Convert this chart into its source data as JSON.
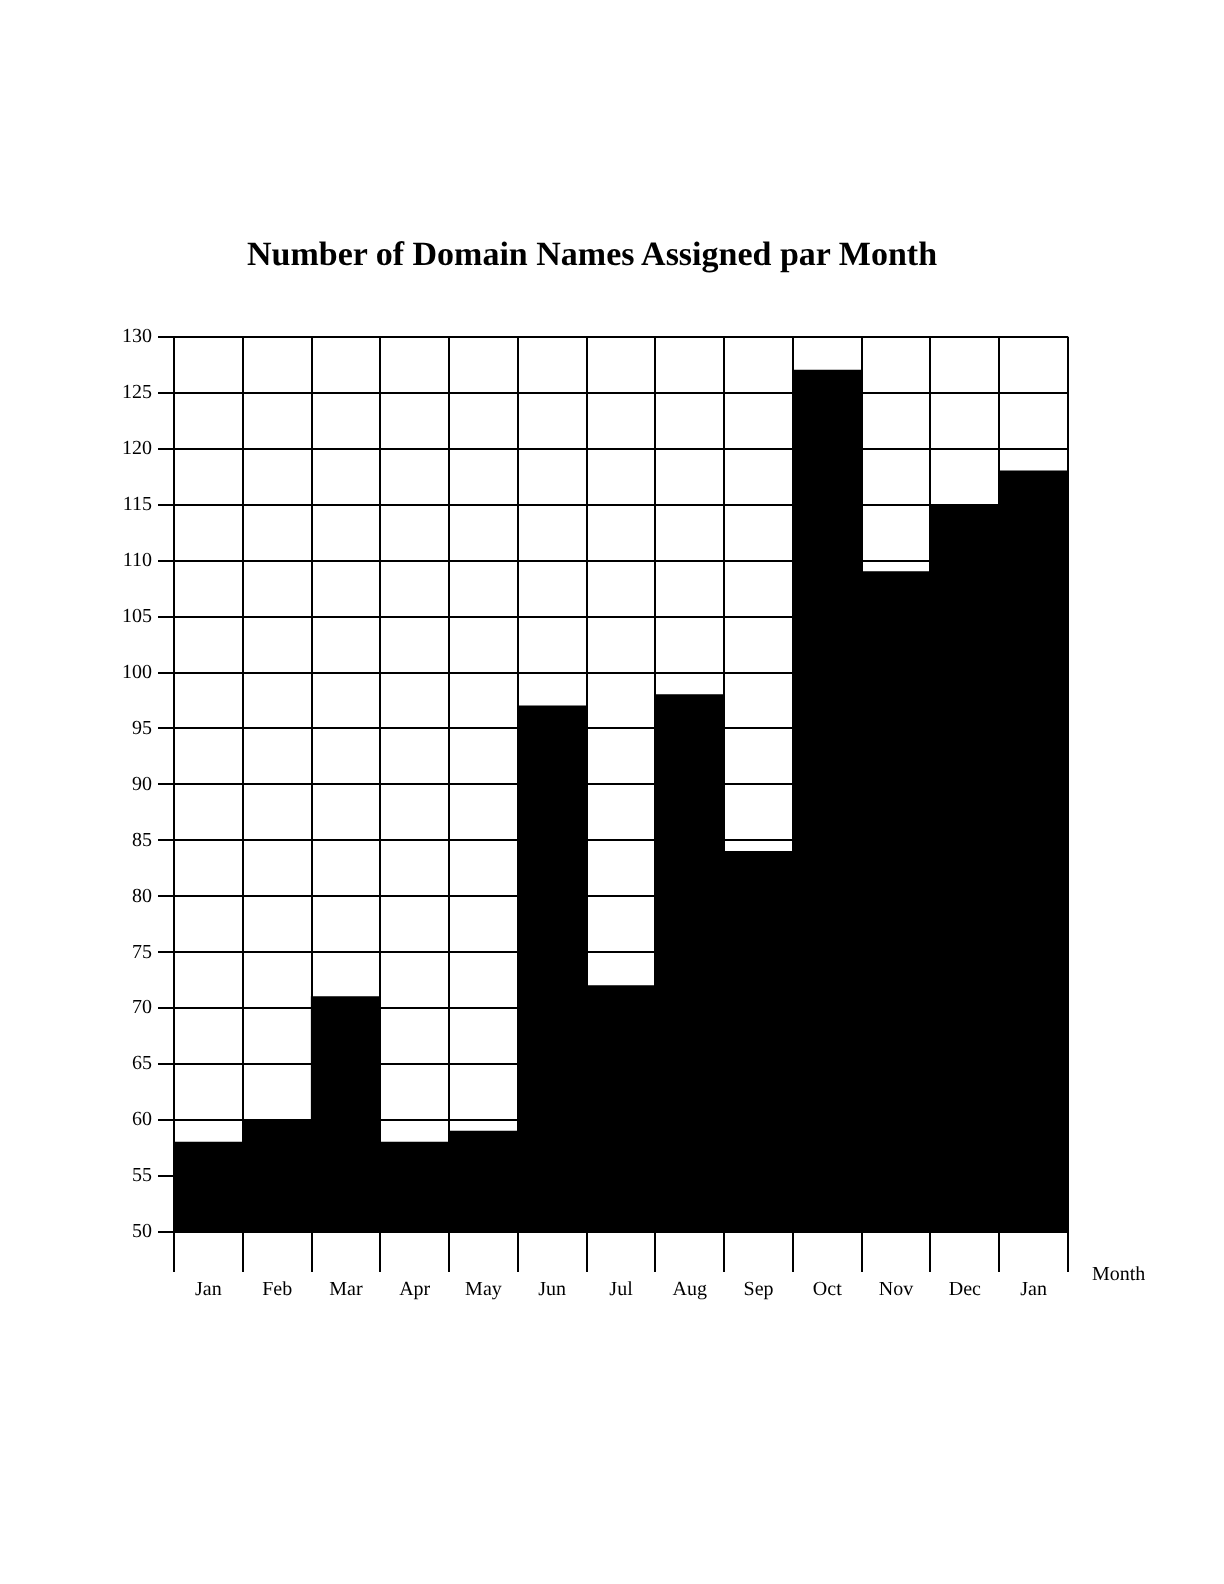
{
  "chart_data": {
    "type": "bar",
    "title": "Number of Domain Names Assigned par Month",
    "xlabel": "Month",
    "categories": [
      "Jan",
      "Feb",
      "Mar",
      "Apr",
      "May",
      "Jun",
      "Jul",
      "Aug",
      "Sep",
      "Oct",
      "Nov",
      "Dec",
      "Jan"
    ],
    "values": [
      58,
      60,
      71,
      58,
      59,
      97,
      72,
      98,
      84,
      127,
      109,
      115,
      118
    ],
    "color": "#000000",
    "ylim": [
      50,
      130
    ],
    "yticks": [
      50,
      55,
      60,
      65,
      70,
      75,
      80,
      85,
      90,
      95,
      100,
      105,
      110,
      115,
      120,
      125,
      130
    ],
    "grid": true,
    "legend": false
  }
}
